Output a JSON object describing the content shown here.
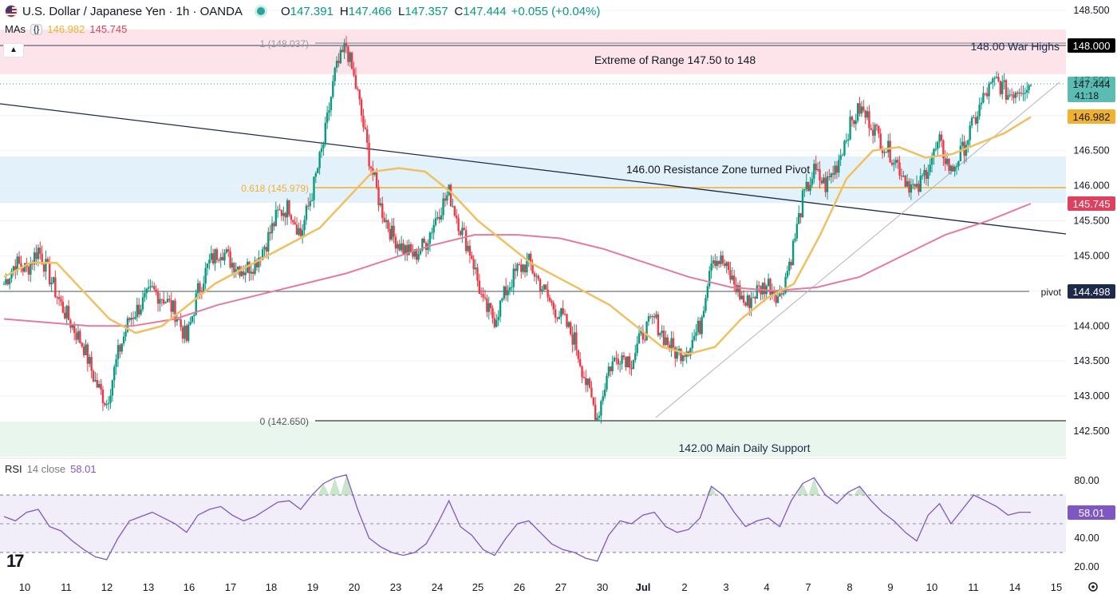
{
  "header": {
    "symbol": "U.S. Dollar / Japanese Yen · 1h · OANDA",
    "open_label": "O",
    "open": "147.391",
    "high_label": "H",
    "high": "147.466",
    "low_label": "L",
    "low": "147.357",
    "close_label": "C",
    "close": "147.444",
    "change": "+0.055 (+0.04%)"
  },
  "mas": {
    "label": "MAs",
    "toggle": "{}",
    "ma1_value": "146.982",
    "ma2_value": "145.745"
  },
  "rsi_legend": {
    "label": "RSI",
    "params": "14 close",
    "value": "58.01"
  },
  "annotations": {
    "range_extreme": "Extreme of Range 147.50 to 148",
    "war_highs": "148.00 War Highs",
    "resistance_zone": "146.00 Resistance Zone turned Pivot",
    "main_support": "142.00 Main Daily Support",
    "fib_1": "1 (148.037)",
    "fib_618": "0.618 (145.979)",
    "fib_0": "0 (142.650)",
    "pivot": "pivot"
  },
  "price_badges": {
    "war_high": "148.000",
    "last_price": "147.444",
    "countdown": "41:18",
    "ma_fast": "146.982",
    "ma_slow": "145.745",
    "pivot": "144.498",
    "rsi_last": "58.01"
  },
  "colors": {
    "up": "#089981",
    "down": "#f23645",
    "ma_fast": "#f0c060",
    "ma_slow": "#e57a9b",
    "fib": "#f0b030",
    "trend_dark": "#1e2a4a",
    "rsi_line": "#7e57c2",
    "zone_red": "#fce4ea",
    "zone_blue": "#e3f2fa",
    "zone_green": "#e8f6ee"
  },
  "chart_data": [
    {
      "type": "line",
      "title": "U.S. Dollar / Japanese Yen · 1h · OANDA",
      "x_tick_labels": [
        "10",
        "11",
        "12",
        "13",
        "16",
        "17",
        "18",
        "19",
        "20",
        "23",
        "24",
        "25",
        "26",
        "27",
        "30",
        "Jul",
        "2",
        "3",
        "4",
        "7",
        "8",
        "9",
        "10",
        "11",
        "14",
        "15"
      ],
      "y_tick_labels": [
        "148.500",
        "148.000",
        "147.500",
        "147.000",
        "146.500",
        "146.000",
        "145.500",
        "145.000",
        "144.500",
        "144.000",
        "143.500",
        "143.000",
        "142.500"
      ],
      "ylim": [
        142.25,
        148.65
      ],
      "series": [
        {
          "name": "USDJPY close (approx)",
          "values": [
            144.6,
            144.9,
            144.8,
            145.1,
            144.7,
            144.3,
            144.0,
            143.7,
            143.2,
            142.9,
            143.6,
            144.1,
            144.3,
            144.5,
            144.4,
            144.2,
            143.8,
            144.5,
            144.9,
            145.1,
            144.9,
            144.8,
            144.9,
            145.2,
            145.6,
            145.7,
            145.3,
            145.9,
            146.6,
            147.6,
            148.0,
            147.3,
            146.4,
            145.7,
            145.3,
            145.1,
            145.0,
            145.2,
            145.6,
            145.9,
            145.4,
            145.0,
            144.3,
            144.1,
            144.5,
            144.8,
            144.9,
            144.6,
            144.3,
            144.1,
            143.8,
            143.2,
            142.7,
            143.4,
            143.6,
            143.5,
            143.9,
            144.1,
            143.8,
            143.6,
            143.7,
            144.0,
            145.0,
            144.9,
            144.6,
            144.3,
            144.5,
            144.6,
            144.4,
            145.0,
            145.8,
            146.2,
            146.0,
            146.3,
            146.8,
            147.1,
            146.9,
            146.6,
            146.4,
            146.1,
            145.9,
            146.3,
            146.6,
            146.2,
            146.5,
            146.9,
            147.3,
            147.5,
            147.3,
            147.4,
            147.44
          ]
        },
        {
          "name": "MA fast",
          "values": [
            144.7,
            144.9,
            144.9,
            144.5,
            144.1,
            143.9,
            144.0,
            144.3,
            144.6,
            144.8,
            145.0,
            145.2,
            145.4,
            145.8,
            146.2,
            146.25,
            146.2,
            145.9,
            145.5,
            145.2,
            144.9,
            144.7,
            144.5,
            144.3,
            144.0,
            143.7,
            143.6,
            143.7,
            144.1,
            144.4,
            144.6,
            145.3,
            146.1,
            146.5,
            146.55,
            146.4,
            146.45,
            146.6,
            146.75,
            146.98
          ]
        },
        {
          "name": "MA slow",
          "values": [
            144.1,
            144.05,
            144.0,
            144.0,
            144.1,
            144.3,
            144.45,
            144.6,
            144.75,
            144.95,
            145.15,
            145.3,
            145.3,
            145.25,
            145.1,
            144.9,
            144.7,
            144.55,
            144.5,
            144.55,
            144.7,
            145.0,
            145.3,
            145.5,
            145.745
          ]
        }
      ],
      "levels": [
        {
          "name": "148.00 War Highs",
          "value": 148.0
        },
        {
          "name": "1 (148.037)",
          "value": 148.037
        },
        {
          "name": "0.618 (145.979)",
          "value": 145.979
        },
        {
          "name": "0 (142.650)",
          "value": 142.65
        },
        {
          "name": "pivot",
          "value": 144.498
        }
      ],
      "zones": [
        {
          "name": "Extreme of Range 147.50 to 148",
          "from": 147.6,
          "to": 148.2
        },
        {
          "name": "146.00 Resistance Zone turned Pivot",
          "from": 145.75,
          "to": 146.4
        },
        {
          "name": "142.00 Main Daily Support",
          "from": 142.25,
          "to": 142.75
        }
      ]
    },
    {
      "type": "line",
      "title": "RSI 14 close",
      "y_tick_labels": [
        "80.00",
        "40.00",
        "20.00"
      ],
      "ylim": [
        13,
        90
      ],
      "bands": [
        70,
        30
      ],
      "series": [
        {
          "name": "RSI",
          "values": [
            55,
            52,
            58,
            60,
            48,
            45,
            38,
            32,
            27,
            25,
            40,
            52,
            55,
            58,
            54,
            50,
            44,
            56,
            60,
            62,
            56,
            52,
            55,
            60,
            65,
            66,
            60,
            70,
            78,
            82,
            84,
            60,
            40,
            34,
            30,
            28,
            30,
            36,
            50,
            66,
            48,
            42,
            32,
            28,
            40,
            50,
            52,
            44,
            36,
            32,
            30,
            26,
            24,
            42,
            52,
            50,
            56,
            58,
            48,
            44,
            46,
            54,
            76,
            70,
            58,
            48,
            52,
            54,
            48,
            66,
            78,
            82,
            70,
            64,
            72,
            76,
            66,
            58,
            52,
            44,
            38,
            56,
            64,
            50,
            60,
            70,
            66,
            62,
            56,
            58,
            58.01
          ]
        }
      ]
    }
  ]
}
